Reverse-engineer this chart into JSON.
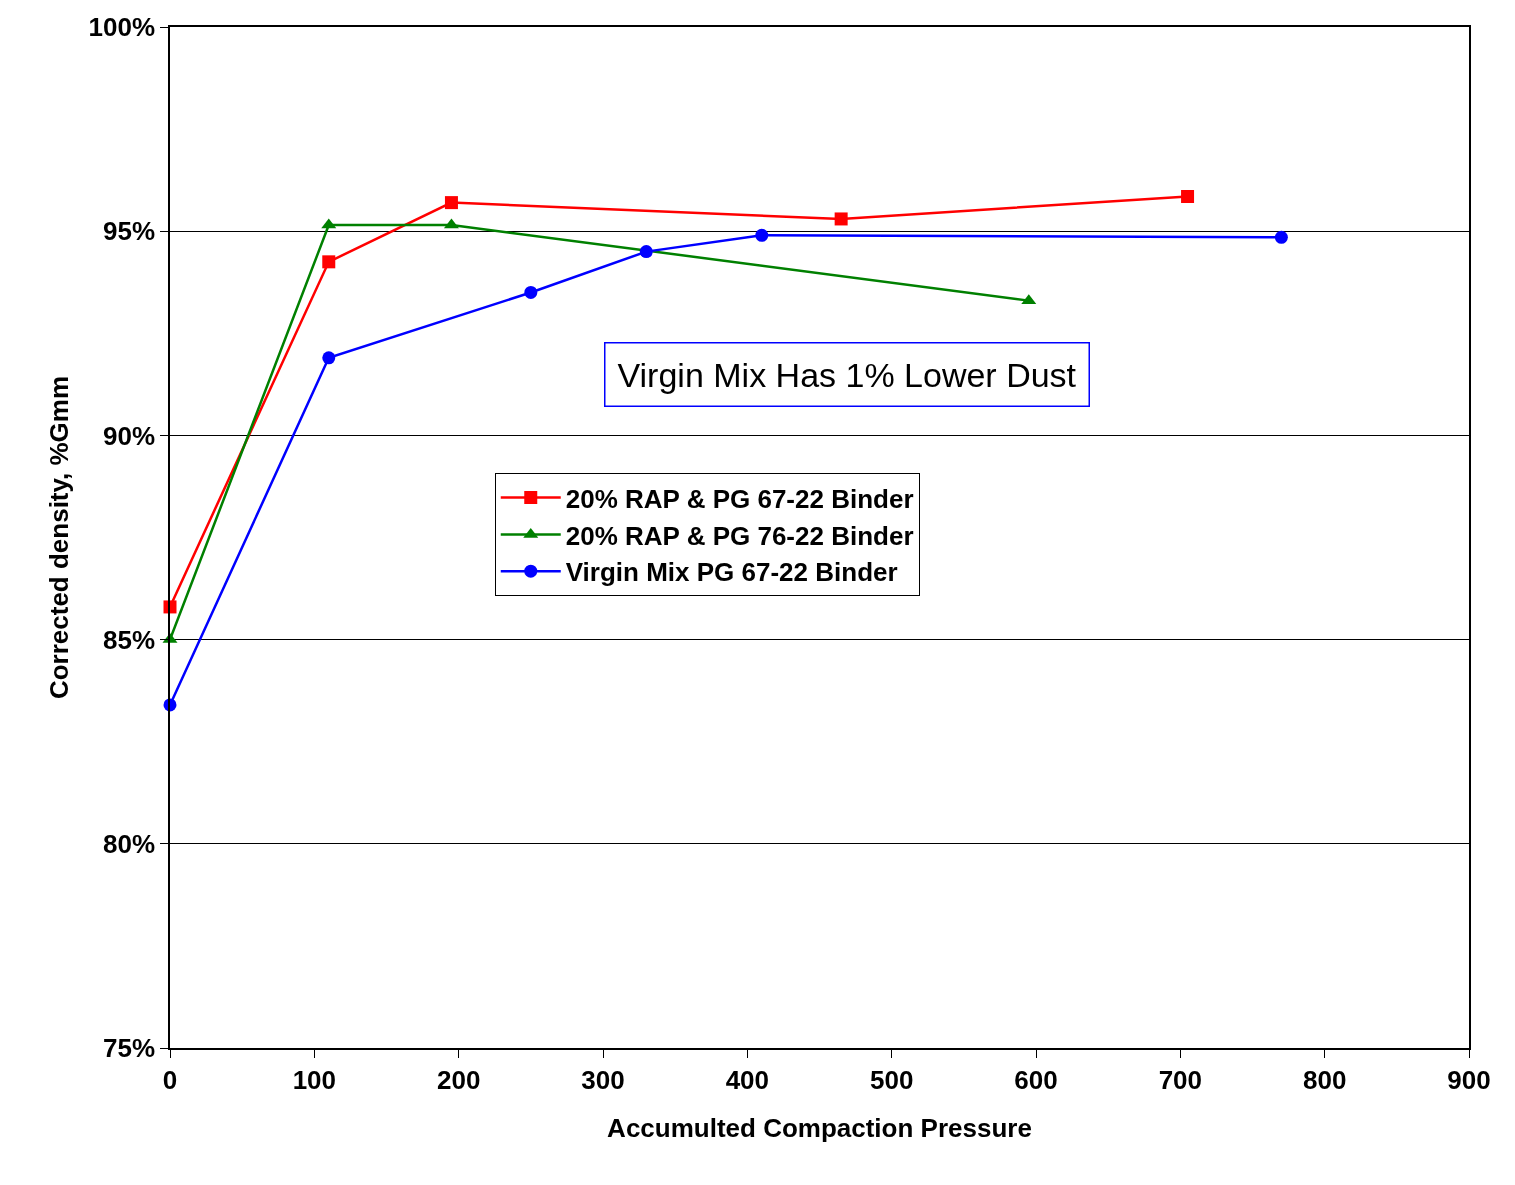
{
  "chart_data": {
    "type": "line",
    "xlabel": "Accumulted Compaction Pressure",
    "ylabel": "Corrected density, %Gmm",
    "annotations": [
      "Virgin Mix Has 1% Lower Dust"
    ],
    "series": [
      {
        "name": "20% RAP & PG 67-22 Binder",
        "color": "#ff0000",
        "marker": "square",
        "x": [
          0,
          110,
          195,
          465,
          705
        ],
        "values": [
          85.8,
          94.25,
          95.7,
          95.3,
          95.85
        ]
      },
      {
        "name": "20% RAP & PG 76-22 Binder",
        "color": "#008000",
        "marker": "triangle",
        "x": [
          0,
          110,
          195,
          595
        ],
        "values": [
          85.0,
          95.15,
          95.15,
          93.3
        ]
      },
      {
        "name": "Virgin Mix PG 67-22 Binder",
        "color": "#0000ff",
        "marker": "circle",
        "x": [
          0,
          110,
          250,
          330,
          410,
          770
        ],
        "values": [
          83.4,
          91.9,
          93.5,
          94.5,
          94.9,
          94.85
        ]
      }
    ],
    "xlim": [
      0,
      900
    ],
    "xticks": [
      0,
      100,
      200,
      300,
      400,
      500,
      600,
      700,
      800,
      900
    ],
    "ylim": [
      75,
      100
    ],
    "yticks": [
      {
        "value": 75,
        "label": "75%"
      },
      {
        "value": 80,
        "label": "80%"
      },
      {
        "value": 85,
        "label": "85%"
      },
      {
        "value": 90,
        "label": "90%"
      },
      {
        "value": 95,
        "label": "95%"
      },
      {
        "value": 100,
        "label": "100%"
      }
    ],
    "grid": "y",
    "legend": "center"
  }
}
